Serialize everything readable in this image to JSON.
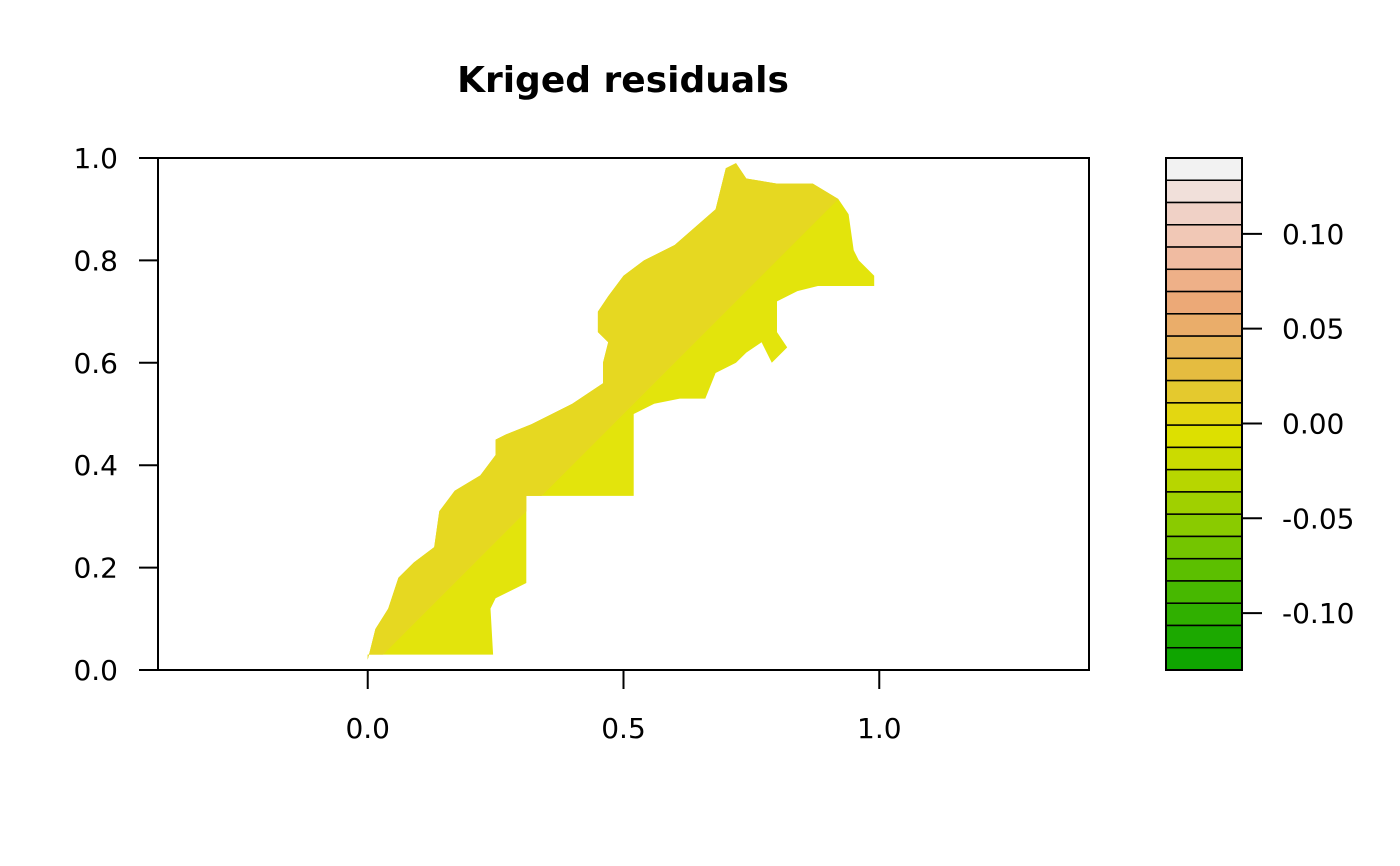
{
  "chart_data": {
    "type": "heatmap",
    "title": "Kriged residuals",
    "xlabel": "",
    "ylabel": "",
    "xlim": [
      -0.41,
      1.41
    ],
    "ylim": [
      0.0,
      1.0
    ],
    "x_ticks": [
      {
        "value": 0.0,
        "label": "0.0"
      },
      {
        "value": 0.5,
        "label": "0.5"
      },
      {
        "value": 1.0,
        "label": "1.0"
      }
    ],
    "y_ticks": [
      {
        "value": 0.0,
        "label": "0.0"
      },
      {
        "value": 0.2,
        "label": "0.2"
      },
      {
        "value": 0.4,
        "label": "0.4"
      },
      {
        "value": 0.6,
        "label": "0.6"
      },
      {
        "value": 0.8,
        "label": "0.8"
      },
      {
        "value": 1.0,
        "label": "1.0"
      }
    ],
    "region_colors": {
      "south_west_fill": "#e3e40c",
      "north_west_fill": "#e6d821"
    },
    "region_polygon": [
      [
        0.0,
        0.02
      ],
      [
        0.015,
        0.08
      ],
      [
        0.04,
        0.12
      ],
      [
        0.06,
        0.18
      ],
      [
        0.09,
        0.21
      ],
      [
        0.13,
        0.24
      ],
      [
        0.14,
        0.31
      ],
      [
        0.17,
        0.35
      ],
      [
        0.22,
        0.38
      ],
      [
        0.25,
        0.42
      ],
      [
        0.25,
        0.45
      ],
      [
        0.27,
        0.46
      ],
      [
        0.32,
        0.48
      ],
      [
        0.36,
        0.5
      ],
      [
        0.4,
        0.52
      ],
      [
        0.46,
        0.56
      ],
      [
        0.46,
        0.6
      ],
      [
        0.47,
        0.64
      ],
      [
        0.45,
        0.66
      ],
      [
        0.45,
        0.7
      ],
      [
        0.47,
        0.73
      ],
      [
        0.5,
        0.77
      ],
      [
        0.54,
        0.8
      ],
      [
        0.6,
        0.83
      ],
      [
        0.68,
        0.9
      ],
      [
        0.7,
        0.98
      ],
      [
        0.72,
        0.99
      ],
      [
        0.74,
        0.96
      ],
      [
        0.8,
        0.95
      ],
      [
        0.87,
        0.95
      ],
      [
        0.92,
        0.92
      ],
      [
        0.94,
        0.89
      ],
      [
        0.95,
        0.82
      ],
      [
        0.96,
        0.8
      ],
      [
        0.99,
        0.77
      ],
      [
        0.99,
        0.75
      ],
      [
        0.88,
        0.75
      ],
      [
        0.84,
        0.74
      ],
      [
        0.8,
        0.72
      ],
      [
        0.8,
        0.66
      ],
      [
        0.82,
        0.63
      ],
      [
        0.79,
        0.6
      ],
      [
        0.77,
        0.64
      ],
      [
        0.74,
        0.62
      ],
      [
        0.72,
        0.6
      ],
      [
        0.68,
        0.58
      ],
      [
        0.66,
        0.53
      ],
      [
        0.61,
        0.53
      ],
      [
        0.56,
        0.52
      ],
      [
        0.52,
        0.5
      ],
      [
        0.52,
        0.34
      ],
      [
        0.31,
        0.34
      ],
      [
        0.31,
        0.17
      ],
      [
        0.29,
        0.16
      ],
      [
        0.25,
        0.14
      ],
      [
        0.24,
        0.12
      ],
      [
        0.245,
        0.03
      ],
      [
        0.0,
        0.03
      ]
    ],
    "colorbar": {
      "ticks": [
        {
          "value": 0.1,
          "label": "0.10"
        },
        {
          "value": 0.05,
          "label": "0.05"
        },
        {
          "value": 0.0,
          "label": "0.00"
        },
        {
          "value": -0.05,
          "label": "-0.05"
        },
        {
          "value": -0.1,
          "label": "-0.10"
        }
      ],
      "range": [
        -0.13,
        0.14
      ],
      "colors_top_to_bottom": [
        "#f2f2f2",
        "#f1e0da",
        "#f0d1c6",
        "#f1c8b6",
        "#f0bba1",
        "#eeb088",
        "#eca977",
        "#eaad6a",
        "#e8b55a",
        "#e5bc40",
        "#e4c92e",
        "#e3d711",
        "#dde000",
        "#cbdb00",
        "#b7d600",
        "#a0d000",
        "#8acb00",
        "#74c500",
        "#5cbf00",
        "#47b800",
        "#30b000",
        "#1ca900",
        "#0fa500"
      ]
    }
  }
}
